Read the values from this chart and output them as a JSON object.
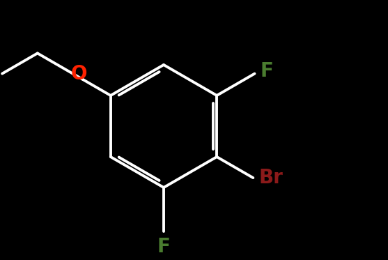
{
  "background": "#000000",
  "bond_color": "#ffffff",
  "bond_width": 2.8,
  "label_O": {
    "text": "O",
    "color": "#ff2200",
    "fontsize": 20,
    "fontweight": "bold"
  },
  "label_F1": {
    "text": "F",
    "color": "#4a7c2f",
    "fontsize": 20,
    "fontweight": "bold"
  },
  "label_Br": {
    "text": "Br",
    "color": "#8b1a1a",
    "fontsize": 20,
    "fontweight": "bold"
  },
  "label_F2": {
    "text": "F",
    "color": "#4a7c2f",
    "fontsize": 20,
    "fontweight": "bold"
  },
  "figsize": [
    5.57,
    3.73
  ],
  "dpi": 100,
  "xlim": [
    0,
    557
  ],
  "ylim": [
    0,
    373
  ]
}
